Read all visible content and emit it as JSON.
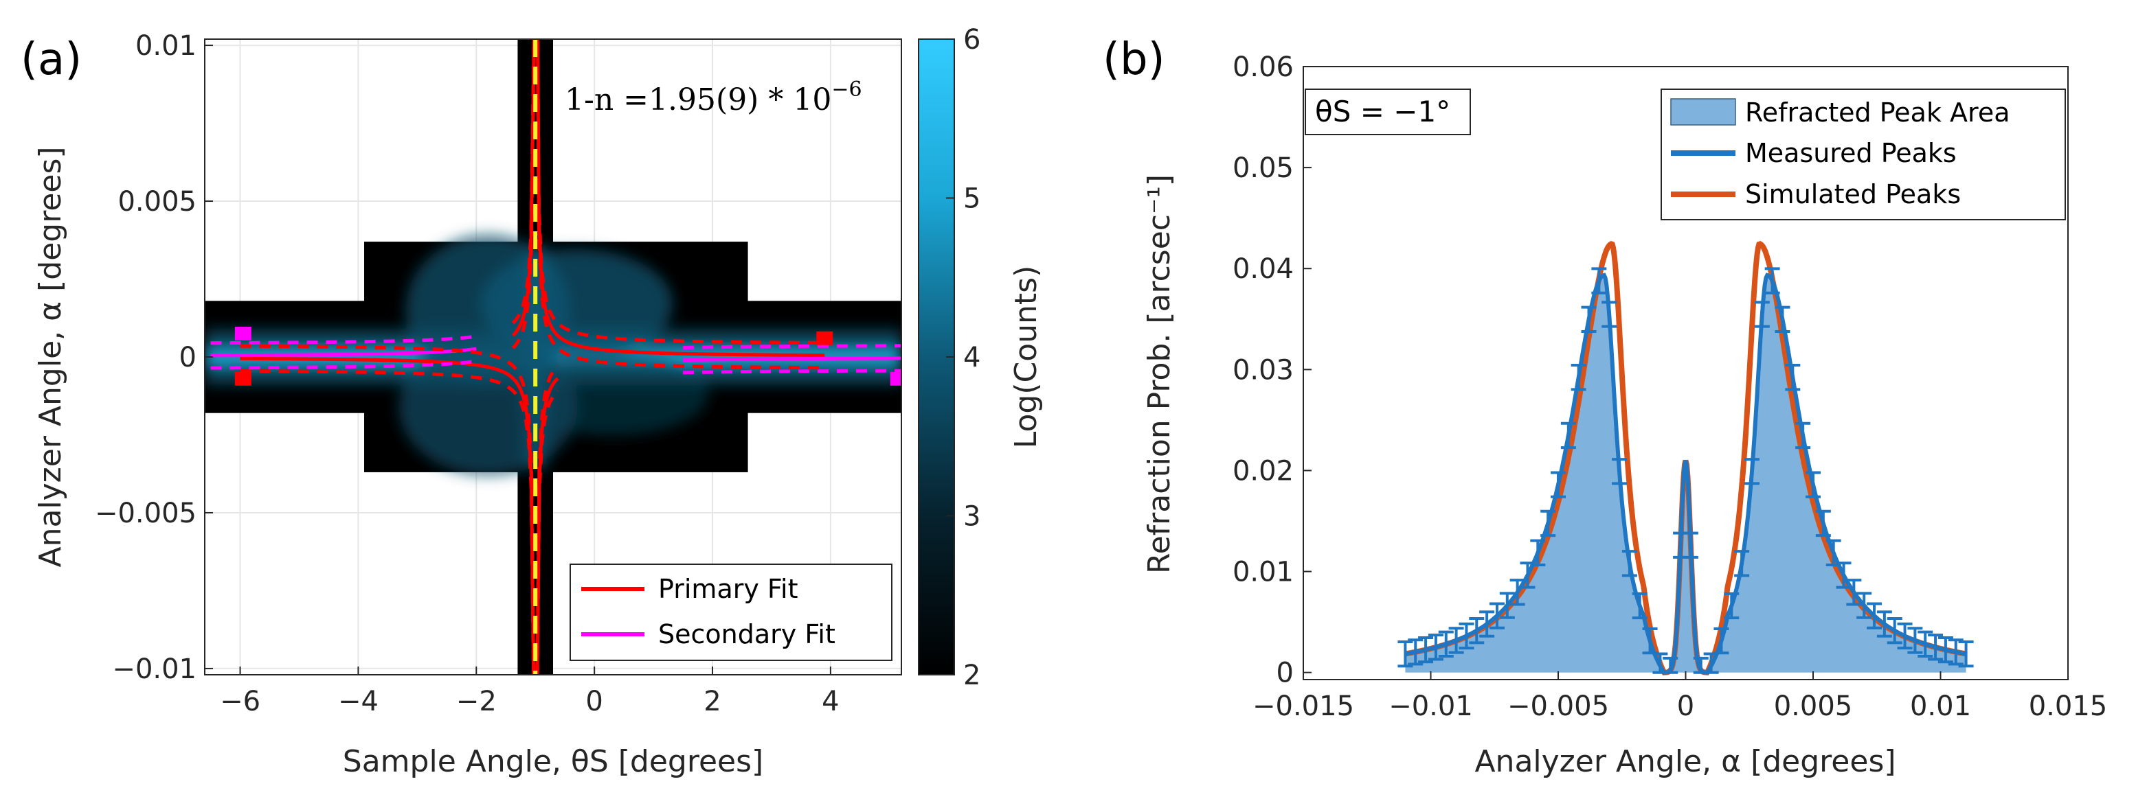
{
  "chart_data": [
    {
      "panel": "(a)",
      "type": "heatmap",
      "xlabel": "Sample Angle, θS [degrees]",
      "ylabel": "Analyzer Angle, α [degrees]",
      "xlim": [
        -6.6,
        5.2
      ],
      "ylim": [
        -0.0102,
        0.0102
      ],
      "xticks": [
        -6,
        -4,
        -2,
        0,
        2,
        4
      ],
      "xtick_labels": [
        "−6",
        "−4",
        "−2",
        "0",
        "2",
        "4"
      ],
      "yticks": [
        -0.01,
        -0.005,
        0,
        0.005,
        0.01
      ],
      "ytick_labels": [
        "−0.01",
        "−0.005",
        "0",
        "0.005",
        "0.01"
      ],
      "colorbar": {
        "label": "Log(Counts)",
        "range": [
          2,
          6
        ],
        "ticks": [
          2,
          3,
          4,
          5,
          6
        ],
        "tick_labels": [
          "2",
          "3",
          "4",
          "5",
          "6"
        ]
      },
      "scan_regions": [
        {
          "x": [
            -6.6,
            5.2
          ],
          "y": [
            -0.0018,
            0.0018
          ]
        },
        {
          "x": [
            -3.9,
            2.6
          ],
          "y": [
            -0.0037,
            0.0037
          ]
        },
        {
          "x": [
            -1.3,
            -0.7
          ],
          "y": [
            -0.0102,
            0.0102
          ]
        }
      ],
      "annotation": "1-n =1.95(9) * 10",
      "annotation_exponent": "−6",
      "vertical_line_x": -1,
      "fits": [
        {
          "name": "Primary Fit",
          "color": "#ff0000",
          "center_x": -1,
          "coef": 0.0026,
          "x_range_upper": [
            -1.38,
            3.9
          ],
          "x_range_lower": [
            -6.0,
            -0.62
          ]
        },
        {
          "name": "Secondary Fit",
          "color": "#ff00ff",
          "center_x": -1,
          "coef": -0.0026,
          "x_range_left": [
            -6.5,
            -2.0
          ],
          "x_range_right": [
            1.5,
            5.2
          ]
        }
      ],
      "legend": [
        "Primary Fit",
        "Secondary Fit"
      ]
    },
    {
      "panel": "(b)",
      "type": "area",
      "xlabel": "Analyzer Angle, α [degrees]",
      "ylabel": "Refraction Prob. [arcsec⁻¹]",
      "xlim": [
        -0.015,
        0.015
      ],
      "ylim": [
        -0.0007,
        0.06
      ],
      "xticks": [
        -0.015,
        -0.01,
        -0.005,
        0,
        0.005,
        0.01,
        0.015
      ],
      "xtick_labels": [
        "−0.015",
        "−0.01",
        "−0.005",
        "0",
        "0.005",
        "0.01",
        "0.015"
      ],
      "yticks": [
        0,
        0.01,
        0.02,
        0.03,
        0.04,
        0.05,
        0.06
      ],
      "ytick_labels": [
        "0",
        "0.01",
        "0.02",
        "0.03",
        "0.04",
        "0.05",
        "0.06"
      ],
      "annotation": "θS = −1°",
      "legend": [
        "Refracted Peak Area",
        "Measured Peaks",
        "Simulated Peaks"
      ],
      "colors": {
        "area": "#7fb2dc",
        "measured": "#1f77c4",
        "simulated": "#d95319"
      },
      "series": [
        {
          "name": "Measured Peaks",
          "peak_positions": [
            -0.0032,
            0.0032
          ],
          "peak_height": 0.039,
          "center_peak": 0.021,
          "range": [
            -0.011,
            0.011
          ]
        },
        {
          "name": "Simulated Peaks",
          "peak_positions": [
            -0.0029,
            0.0029
          ],
          "peak_height": 0.042,
          "center_peak": 0.021,
          "range": [
            -0.011,
            0.011
          ]
        }
      ]
    }
  ]
}
